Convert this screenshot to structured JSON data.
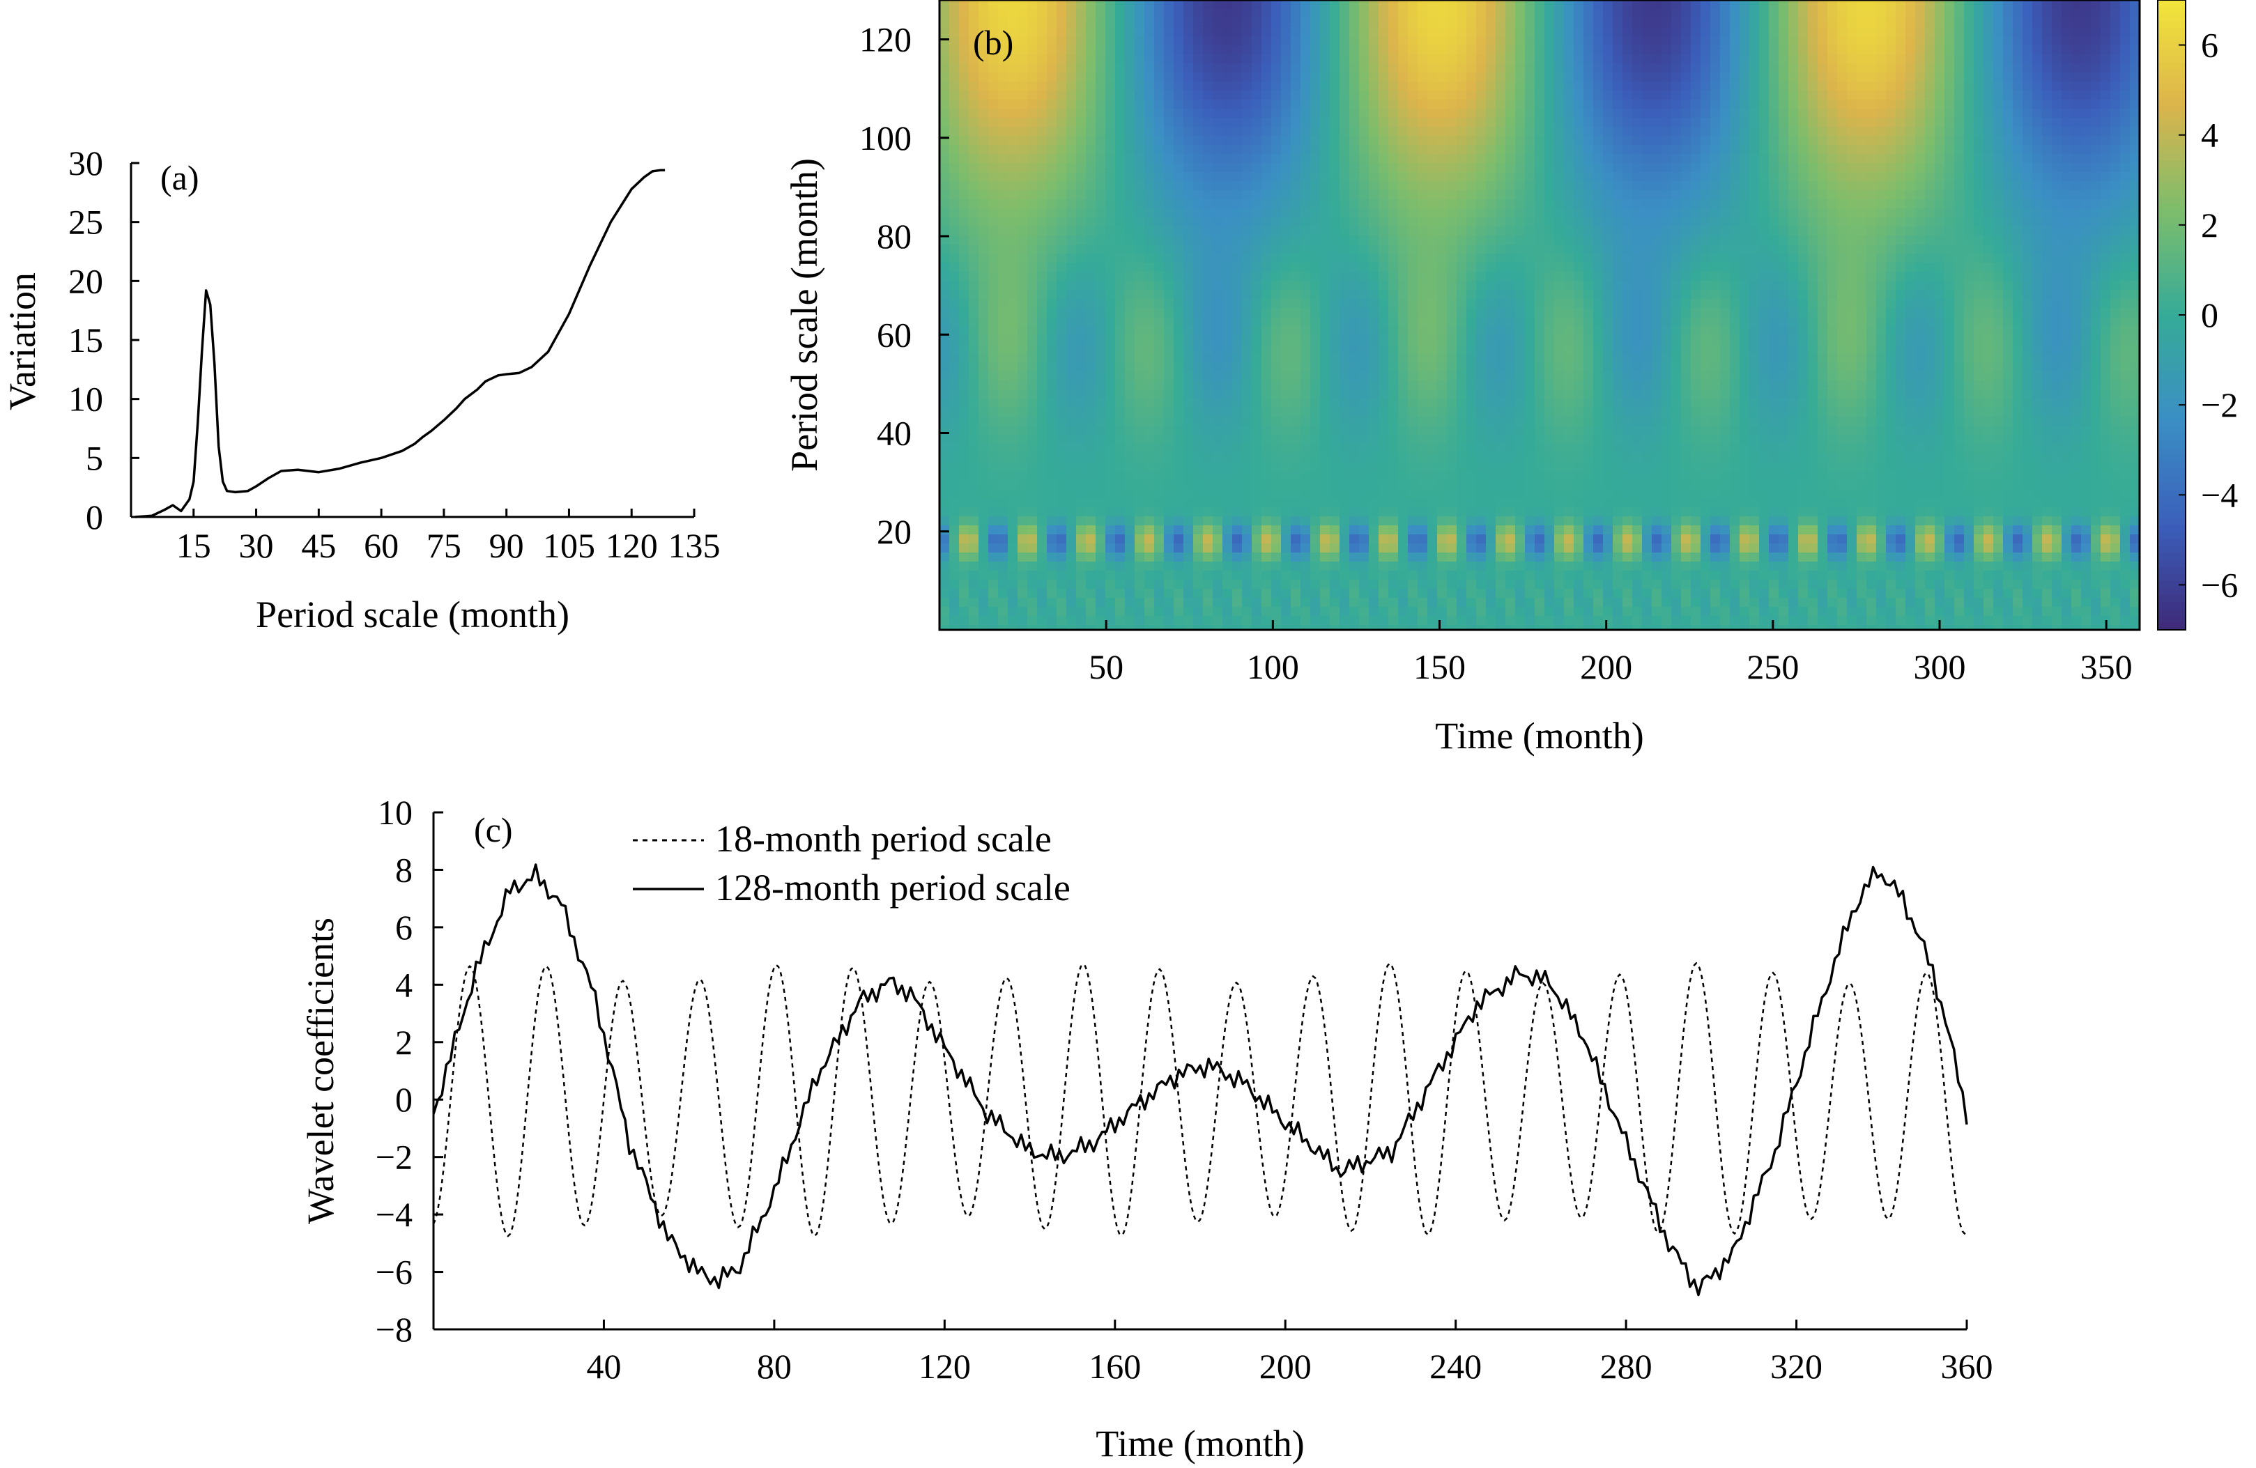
{
  "chart_data": [
    {
      "panel": "(a)",
      "type": "line",
      "xlabel": "Period scale (month)",
      "ylabel": "Variation",
      "xlim": [
        0,
        135
      ],
      "ylim": [
        0,
        30
      ],
      "xticks": [
        "15",
        "30",
        "45",
        "60",
        "75",
        "90",
        "105",
        "120",
        "135"
      ],
      "yticks": [
        "0",
        "5",
        "10",
        "15",
        "20",
        "25",
        "30"
      ],
      "series": [
        {
          "x": [
            1,
            5,
            8,
            10,
            12,
            14,
            15,
            16,
            17,
            18,
            19,
            20,
            21,
            22,
            23,
            25,
            28,
            30,
            33,
            36,
            40,
            45,
            50,
            55,
            60,
            65,
            68,
            70,
            72,
            75,
            78,
            80,
            83,
            85,
            88,
            90,
            93,
            96,
            100,
            105,
            110,
            115,
            120,
            123,
            125,
            127,
            128
          ],
          "y": [
            0,
            0.1,
            0.6,
            1.0,
            0.5,
            1.5,
            3,
            8,
            14,
            19.2,
            18,
            13,
            6,
            3,
            2.2,
            2.1,
            2.2,
            2.6,
            3.3,
            3.9,
            4.0,
            3.8,
            4.1,
            4.6,
            5.0,
            5.6,
            6.2,
            6.8,
            7.3,
            8.2,
            9.2,
            10.0,
            10.8,
            11.5,
            12.0,
            12.1,
            12.2,
            12.7,
            14.0,
            17.2,
            21.3,
            25.0,
            27.8,
            28.8,
            29.3,
            29.4,
            29.4
          ]
        }
      ]
    },
    {
      "panel": "(b)",
      "type": "heatmap",
      "xlabel": "Time (month)",
      "ylabel": "Period scale (month)",
      "xlim": [
        0,
        360
      ],
      "ylim": [
        0,
        128
      ],
      "xticks": [
        "50",
        "100",
        "150",
        "200",
        "250",
        "300",
        "350"
      ],
      "yticks": [
        "20",
        "40",
        "60",
        "80",
        "100",
        "120"
      ],
      "colorbar": {
        "ticks": [
          "6",
          "4",
          "2",
          "0",
          "−2",
          "−4",
          "−6"
        ],
        "range": [
          -7,
          7
        ],
        "colors": [
          "#3e2a78",
          "#3b5fbb",
          "#3b8fc4",
          "#36ab98",
          "#7dbd6c",
          "#dcb44c",
          "#f2e53a"
        ]
      },
      "notable_features": {
        "period_18_band": 18,
        "period_128_band": 128
      }
    },
    {
      "panel": "(c)",
      "type": "line",
      "xlabel": "Time (month)",
      "ylabel": "Wavelet coefficients",
      "xlim": [
        0,
        360
      ],
      "ylim": [
        -8,
        10
      ],
      "xticks": [
        "40",
        "80",
        "120",
        "160",
        "200",
        "240",
        "280",
        "320",
        "360"
      ],
      "yticks": [
        "10",
        "8",
        "6",
        "4",
        "2",
        "0",
        "−2",
        "−4",
        "−6",
        "−8"
      ],
      "legend": [
        "18-month period scale",
        "128-month period scale"
      ],
      "legend_position": "top-center",
      "series": [
        {
          "name": "18-month period scale",
          "style": "dotted",
          "period": 18,
          "amplitude": 4.4
        },
        {
          "name": "128-month period scale",
          "style": "solid",
          "x": [
            0,
            10,
            18,
            24,
            30,
            38,
            46,
            55,
            62,
            67,
            72,
            80,
            90,
            100,
            107,
            112,
            120,
            130,
            140,
            147,
            155,
            165,
            175,
            182,
            190,
            200,
            213,
            225,
            235,
            245,
            255,
            262,
            270,
            280,
            290,
            297,
            305,
            315,
            325,
            333,
            339,
            345,
            352,
            357,
            360
          ],
          "y": [
            -0.5,
            4.5,
            7.3,
            7.8,
            6.8,
            3.5,
            -1.5,
            -4.8,
            -6.0,
            -6.3,
            -5.8,
            -3.2,
            0.8,
            3.4,
            4.1,
            3.7,
            1.8,
            -0.5,
            -1.8,
            -2.0,
            -1.5,
            -0.2,
            0.9,
            1.2,
            0.6,
            -0.8,
            -2.5,
            -1.8,
            0.8,
            3.3,
            4.4,
            4.1,
            2.2,
            -1.5,
            -5.0,
            -6.6,
            -5.4,
            -1.8,
            3.0,
            6.5,
            8.0,
            7.0,
            4.5,
            1.5,
            -0.5
          ]
        }
      ]
    }
  ]
}
